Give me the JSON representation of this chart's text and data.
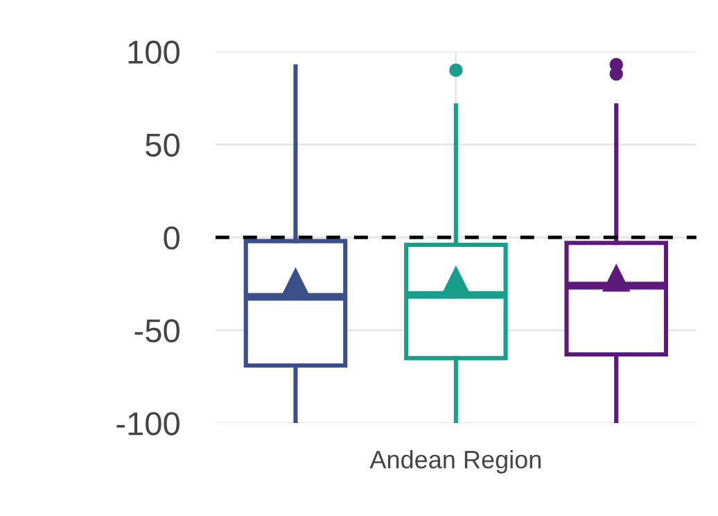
{
  "chart_data": {
    "type": "box",
    "categories": [
      null,
      "Andean Region",
      null
    ],
    "colors": [
      "#3b4f8a",
      "#1a9e8c",
      "#5c1a7a"
    ],
    "boxes": [
      {
        "low": -100,
        "q1": -69,
        "median": -32,
        "q3": -2,
        "high": 92,
        "mean": -24
      },
      {
        "low": -100,
        "q1": -65,
        "median": -31,
        "q3": -4,
        "high": 71,
        "mean": -23,
        "outliers": [
          90
        ]
      },
      {
        "low": -100,
        "q1": -63,
        "median": -26,
        "q3": -3,
        "high": 71,
        "mean": -22,
        "outliers": [
          93,
          88
        ]
      }
    ],
    "ylim": [
      -100,
      100
    ],
    "yticks": [
      -100,
      -50,
      0,
      50,
      100
    ],
    "ref_lines": [
      {
        "axis": "y",
        "value": 0,
        "color": "#000000",
        "line_style": "dashed"
      }
    ],
    "grid": true,
    "marker": "triangle"
  }
}
